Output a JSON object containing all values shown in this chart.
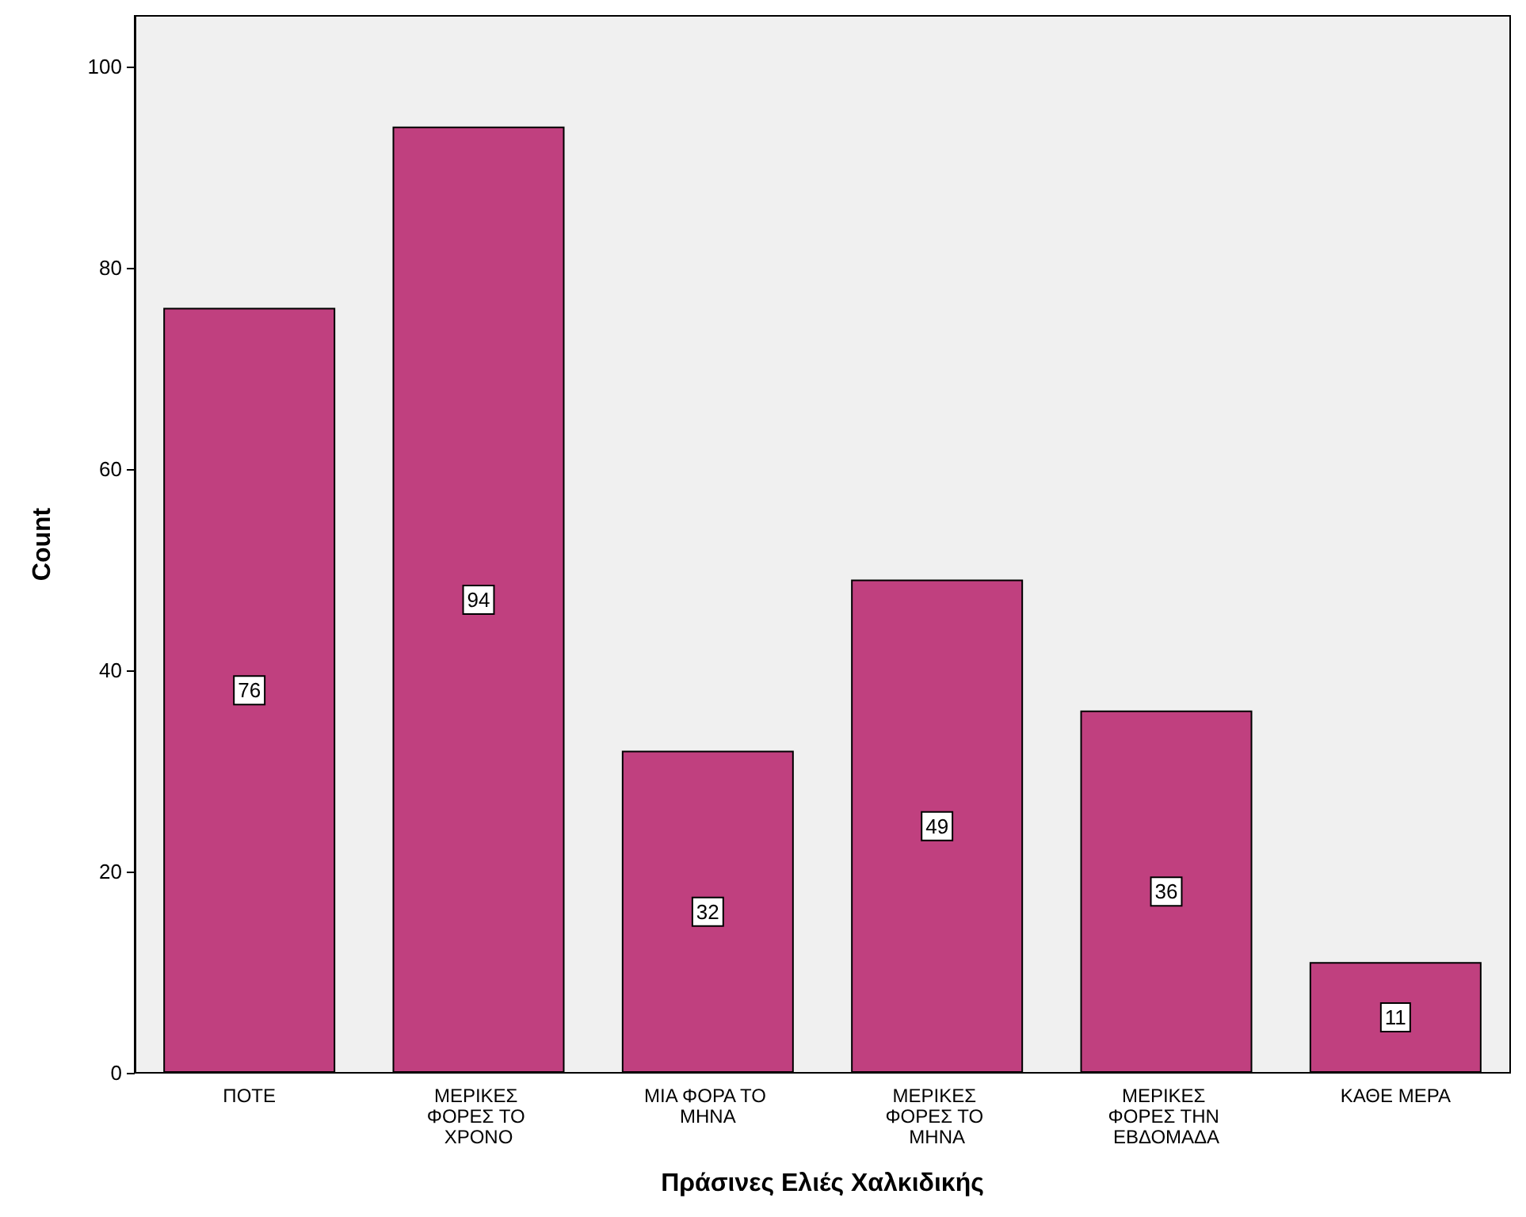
{
  "chart_data": {
    "type": "bar",
    "xlabel": "Πράσινες Ελιές Χαλκιδικής",
    "ylabel": "Count",
    "categories": [
      "ΠΟΤΕ",
      "ΜΕΡΙΚΕΣ ΦΟΡΕΣ ΤΟ ΧΡΟΝΟ",
      "ΜΙΑ ΦΟΡΑ ΤΟ ΜΗΝΑ",
      "ΜΕΡΙΚΕΣ ΦΟΡΕΣ ΤΟ ΜΗΝΑ",
      "ΜΕΡΙΚΕΣ ΦΟΡΕΣ ΤΗΝ ΕΒΔΟΜΑΔΑ",
      "ΚΑΘΕ ΜΕΡΑ"
    ],
    "values": [
      76,
      94,
      32,
      49,
      36,
      11
    ],
    "color": "#c0407f",
    "ylim": [
      0,
      105
    ],
    "yticks": [
      0,
      20,
      40,
      60,
      80,
      100
    ],
    "grid": false,
    "data_labels": true
  }
}
